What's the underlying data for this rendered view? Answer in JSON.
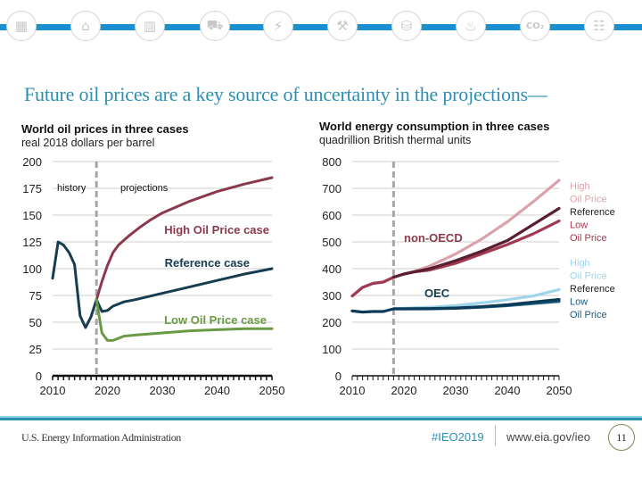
{
  "header": {
    "icons": [
      "sectors-icon",
      "industrial-icon",
      "buildings-icon",
      "car-icon",
      "electricity-icon",
      "coal-mining-icon",
      "oil-barrel-icon",
      "natural-gas-flame-icon",
      "co2-cloud-icon",
      "document-icon"
    ]
  },
  "slide": {
    "title": "Future oil prices are a key source of uncertainty in the projections—"
  },
  "footer": {
    "organization": "U.S. Energy Information Administration",
    "hashtag": "#IEO2019",
    "url": "www.eia.gov/ieo",
    "page": "11"
  },
  "colors": {
    "accent_bar": "#1a8fd0",
    "title": "#2d8fb0",
    "high_oil_price": "#8b3a4e",
    "reference": "#163d50",
    "low_oil_price": "#6b9a45",
    "divider": "#a6a6a6",
    "nonoecd_high": "#d9a3ac",
    "nonoecd_ref": "#5a1e32",
    "nonoecd_low": "#a03a52",
    "oecd_high": "#9fd4ea",
    "oecd_ref": "#0b3b59",
    "oecd_low": "#1c5a7a"
  },
  "chart_data": [
    {
      "type": "line",
      "title": "World oil prices in three cases",
      "subtitle": "real 2018 dollars per barrel",
      "xlabel": "",
      "ylabel": "",
      "xlim": [
        2010,
        2050
      ],
      "ylim": [
        0,
        200
      ],
      "x_ticks": [
        "2010",
        "2020",
        "2030",
        "2040",
        "2050"
      ],
      "y_ticks": [
        "0",
        "25",
        "50",
        "75",
        "100",
        "125",
        "150",
        "175",
        "200"
      ],
      "grid": true,
      "divider_year": 2018,
      "region_labels": [
        "history",
        "projections"
      ],
      "series": [
        {
          "name": "Reference case",
          "key": "reference",
          "label": "Reference case",
          "x": [
            2010,
            2011,
            2012,
            2013,
            2014,
            2015,
            2016,
            2017,
            2018,
            2019,
            2020,
            2021,
            2022,
            2023,
            2025,
            2030,
            2035,
            2040,
            2045,
            2050
          ],
          "values": [
            91,
            125,
            122,
            115,
            104,
            56,
            45,
            55,
            71,
            60,
            61,
            65,
            67,
            69,
            71,
            77,
            83,
            89,
            95,
            100
          ]
        },
        {
          "name": "High Oil Price case",
          "key": "high_oil_price",
          "label": "High Oil Price case",
          "x": [
            2018,
            2019,
            2020,
            2021,
            2022,
            2024,
            2026,
            2028,
            2030,
            2035,
            2040,
            2045,
            2050
          ],
          "values": [
            71,
            88,
            103,
            115,
            122,
            131,
            139,
            146,
            152,
            163,
            172,
            179,
            185
          ]
        },
        {
          "name": "Low Oil Price case",
          "key": "low_oil_price",
          "label": "Low Oil Price case",
          "x": [
            2018,
            2019,
            2020,
            2021,
            2022,
            2023,
            2025,
            2030,
            2035,
            2040,
            2045,
            2050
          ],
          "values": [
            71,
            40,
            33,
            33,
            35,
            37,
            38,
            40,
            42,
            43,
            44,
            44
          ]
        }
      ]
    },
    {
      "type": "line",
      "title": "World energy consumption in three cases",
      "subtitle": "quadrillion British thermal units",
      "xlabel": "",
      "ylabel": "",
      "xlim": [
        2010,
        2050
      ],
      "ylim": [
        0,
        800
      ],
      "x_ticks": [
        "2010",
        "2020",
        "2030",
        "2040",
        "2050"
      ],
      "y_ticks": [
        "0",
        "100",
        "200",
        "300",
        "400",
        "500",
        "600",
        "700",
        "800"
      ],
      "grid": true,
      "divider_year": 2018,
      "group_labels": [
        "non-OECD",
        "OEC"
      ],
      "legend": {
        "non_oecd": [
          "High",
          "Oil Price",
          "Reference",
          "Low",
          "Oil Price"
        ],
        "oecd": [
          "High",
          "Oil Price",
          "Reference",
          "Low",
          "Oil Price"
        ]
      },
      "series": [
        {
          "name": "non-OECD High Oil Price",
          "key": "nonoecd_high",
          "x": [
            2010,
            2012,
            2014,
            2016,
            2018,
            2020,
            2022,
            2025,
            2030,
            2035,
            2040,
            2045,
            2050
          ],
          "values": [
            298,
            330,
            345,
            350,
            368,
            380,
            390,
            410,
            455,
            510,
            575,
            650,
            730
          ]
        },
        {
          "name": "non-OECD Reference",
          "key": "nonoecd_ref",
          "x": [
            2018,
            2020,
            2022,
            2025,
            2030,
            2035,
            2040,
            2045,
            2050
          ],
          "values": [
            368,
            380,
            388,
            400,
            430,
            465,
            505,
            565,
            625
          ]
        },
        {
          "name": "non-OECD Low Oil Price",
          "key": "nonoecd_low",
          "x": [
            2010,
            2012,
            2014,
            2016,
            2018,
            2020,
            2022,
            2025,
            2030,
            2035,
            2040,
            2045,
            2050
          ],
          "values": [
            298,
            330,
            345,
            350,
            368,
            380,
            388,
            395,
            420,
            455,
            490,
            530,
            578
          ]
        },
        {
          "name": "OECD High Oil Price",
          "key": "oecd_high",
          "x": [
            2018,
            2020,
            2025,
            2030,
            2035,
            2040,
            2045,
            2050
          ],
          "values": [
            250,
            252,
            256,
            262,
            272,
            284,
            298,
            322
          ]
        },
        {
          "name": "OECD Reference",
          "key": "oecd_ref",
          "x": [
            2010,
            2012,
            2014,
            2016,
            2018,
            2020,
            2025,
            2030,
            2035,
            2040,
            2045,
            2050
          ],
          "values": [
            242,
            238,
            240,
            240,
            250,
            250,
            251,
            253,
            258,
            265,
            275,
            285
          ]
        },
        {
          "name": "OECD Low Oil Price",
          "key": "oecd_low",
          "x": [
            2018,
            2020,
            2025,
            2030,
            2035,
            2040,
            2045,
            2050
          ],
          "values": [
            250,
            250,
            250,
            252,
            256,
            262,
            270,
            278
          ]
        }
      ]
    }
  ]
}
